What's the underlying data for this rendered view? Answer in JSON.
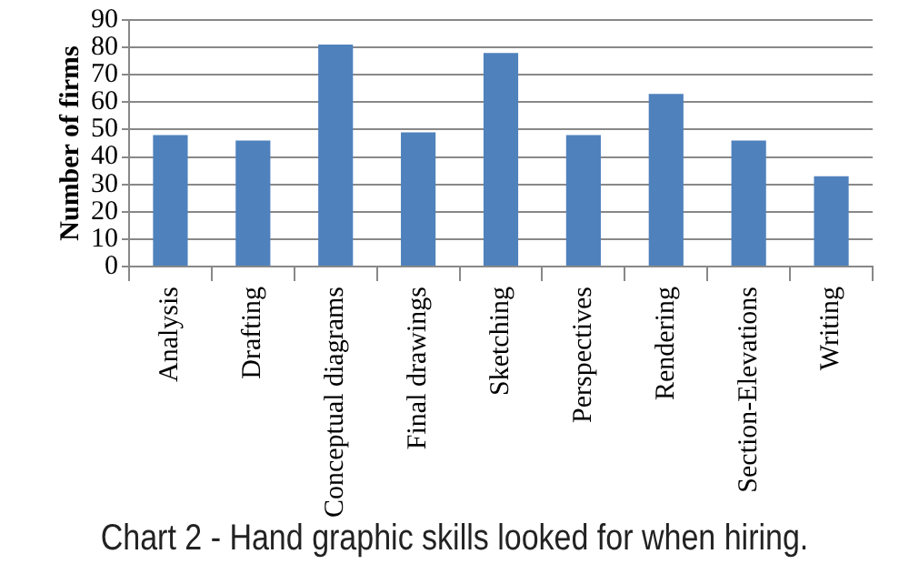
{
  "chart_data": {
    "type": "bar",
    "title": "Chart 2 - Hand graphic skills looked for when hiring.",
    "ylabel": "Number of firms",
    "categories": [
      "Analysis",
      "Drafting",
      "Conceptual diagrams",
      "Final drawings",
      "Sketching",
      "Perspectives",
      "Rendering",
      "Section-Elevations",
      "Writing"
    ],
    "values": [
      48,
      46,
      81,
      49,
      78,
      48,
      63,
      46,
      33
    ],
    "color": "#4f81bd",
    "ylim": [
      0,
      90
    ],
    "yticks": [
      0,
      10,
      20,
      30,
      40,
      50,
      60,
      70,
      80,
      90
    ],
    "grid": "y",
    "legend": false
  }
}
